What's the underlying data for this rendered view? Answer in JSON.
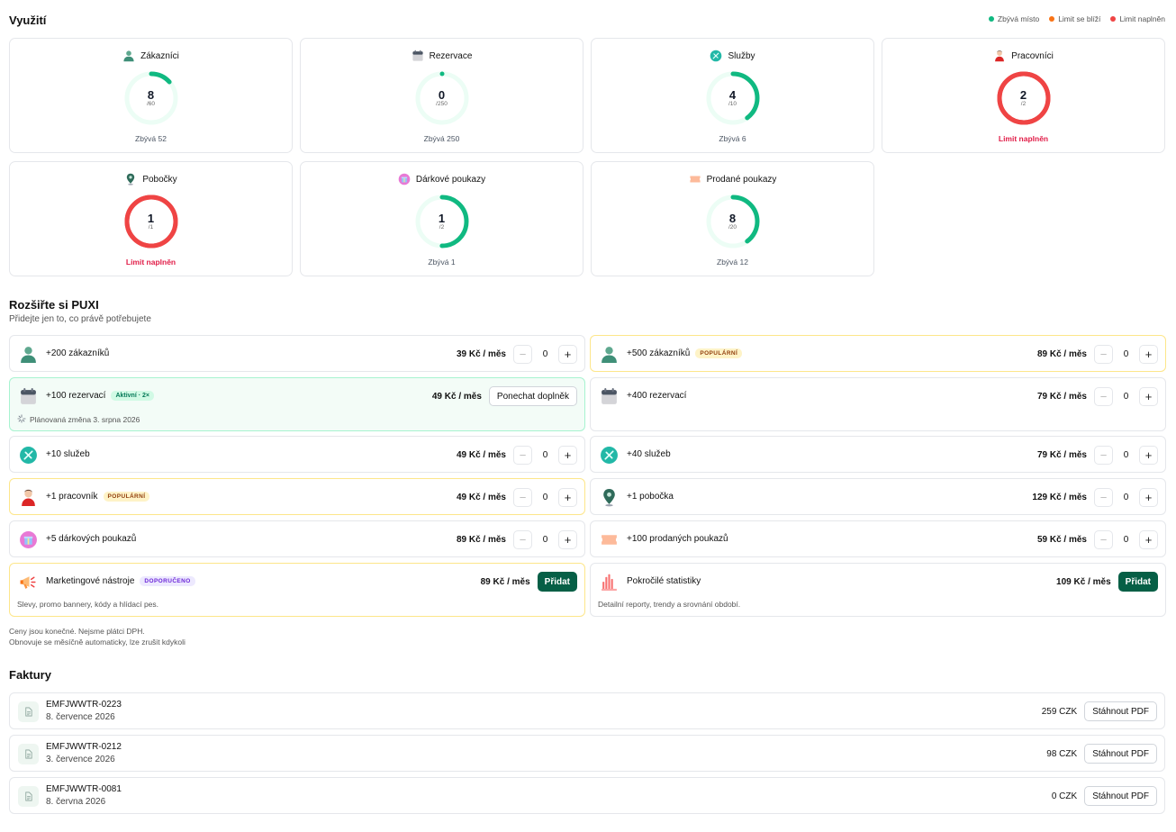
{
  "usage": {
    "title": "Využití",
    "legend": [
      {
        "label": "Zbývá místo",
        "color": "#10b981"
      },
      {
        "label": "Limit se blíží",
        "color": "#f97316"
      },
      {
        "label": "Limit naplněn",
        "color": "#ef4444"
      }
    ],
    "cards": [
      {
        "name": "Zákazníci",
        "icon": "customer-icon",
        "value": "8",
        "limit": "/60",
        "ratio": 0.1333,
        "status": "Zbývá 52",
        "state": "ok"
      },
      {
        "name": "Rezervace",
        "icon": "calendar-icon",
        "value": "0",
        "limit": "/250",
        "ratio": 0,
        "status": "Zbývá 250",
        "state": "ok"
      },
      {
        "name": "Služby",
        "icon": "service-icon",
        "value": "4",
        "limit": "/10",
        "ratio": 0.4,
        "status": "Zbývá 6",
        "state": "ok"
      },
      {
        "name": "Pracovníci",
        "icon": "worker-icon",
        "value": "2",
        "limit": "/2",
        "ratio": 1,
        "status": "Limit naplněn",
        "state": "full"
      },
      {
        "name": "Pobočky",
        "icon": "location-pin-icon",
        "value": "1",
        "limit": "/1",
        "ratio": 1,
        "status": "Limit naplněn",
        "state": "full"
      },
      {
        "name": "Dárkové poukazy",
        "icon": "gift-icon",
        "value": "1",
        "limit": "/2",
        "ratio": 0.5,
        "status": "Zbývá 1",
        "state": "ok"
      },
      {
        "name": "Prodané poukazy",
        "icon": "voucher-icon",
        "value": "8",
        "limit": "/20",
        "ratio": 0.4,
        "status": "Zbývá 12",
        "state": "ok"
      }
    ]
  },
  "extend": {
    "title": "Rozšiřte si PUXI",
    "subtitle": "Přidejte jen to, co právě potřebujete",
    "addons": [
      {
        "name": "+200 zákazníků",
        "icon": "customer-icon",
        "price": "39 Kč / měs",
        "qty": "0",
        "badge": "",
        "kind": "stepper"
      },
      {
        "name": "+500 zákazníků",
        "icon": "customer-icon",
        "price": "89 Kč / měs",
        "qty": "0",
        "badge": "POPULÁRNÍ",
        "kind": "stepper"
      },
      {
        "name": "+100 rezervací",
        "icon": "calendar-icon",
        "price": "49 Kč / měs",
        "badge": "Aktivní · 2×",
        "kind": "keep",
        "action": "Ponechat doplněk",
        "scheduled": "Plánovaná změna 3. srpna 2026"
      },
      {
        "name": "+400 rezervací",
        "icon": "calendar-icon",
        "price": "79 Kč / měs",
        "qty": "0",
        "badge": "",
        "kind": "stepper"
      },
      {
        "name": "+10 služeb",
        "icon": "service-icon",
        "price": "49 Kč / měs",
        "qty": "0",
        "badge": "",
        "kind": "stepper"
      },
      {
        "name": "+40 služeb",
        "icon": "service-icon",
        "price": "79 Kč / měs",
        "qty": "0",
        "badge": "",
        "kind": "stepper"
      },
      {
        "name": "+1 pracovník",
        "icon": "worker-icon",
        "price": "49 Kč / měs",
        "qty": "0",
        "badge": "POPULÁRNÍ",
        "kind": "stepper"
      },
      {
        "name": "+1 pobočka",
        "icon": "location-pin-icon",
        "price": "129 Kč / měs",
        "qty": "0",
        "badge": "",
        "kind": "stepper"
      },
      {
        "name": "+5 dárkových poukazů",
        "icon": "gift-icon",
        "price": "89 Kč / měs",
        "qty": "0",
        "badge": "",
        "kind": "stepper"
      },
      {
        "name": "+100 prodaných poukazů",
        "icon": "voucher-icon",
        "price": "59 Kč / měs",
        "qty": "0",
        "badge": "",
        "kind": "stepper"
      },
      {
        "name": "Marketingové nástroje",
        "icon": "megaphone-icon",
        "price": "89 Kč / měs",
        "badge": "DOPORUČENO",
        "kind": "add",
        "action": "Přidat",
        "desc": "Slevy, promo bannery, kódy a hlídací pes."
      },
      {
        "name": "Pokročilé statistiky",
        "icon": "stats-icon",
        "price": "109 Kč / měs",
        "badge": "",
        "kind": "add",
        "action": "Přidat",
        "desc": "Detailní reporty, trendy a srovnání období."
      }
    ],
    "notes": [
      "Ceny jsou konečné. Nejsme plátci DPH.",
      "Obnovuje se měsíčně automaticky, lze zrušit kdykoli"
    ]
  },
  "invoices": {
    "title": "Faktury",
    "download_label": "Stáhnout PDF",
    "items": [
      {
        "number": "EMFJWWTR-0223",
        "date": "8. července 2026",
        "amount": "259 CZK"
      },
      {
        "number": "EMFJWWTR-0212",
        "date": "3. července 2026",
        "amount": "98 CZK"
      },
      {
        "number": "EMFJWWTR-0081",
        "date": "8. června 2026",
        "amount": "0 CZK"
      }
    ]
  }
}
